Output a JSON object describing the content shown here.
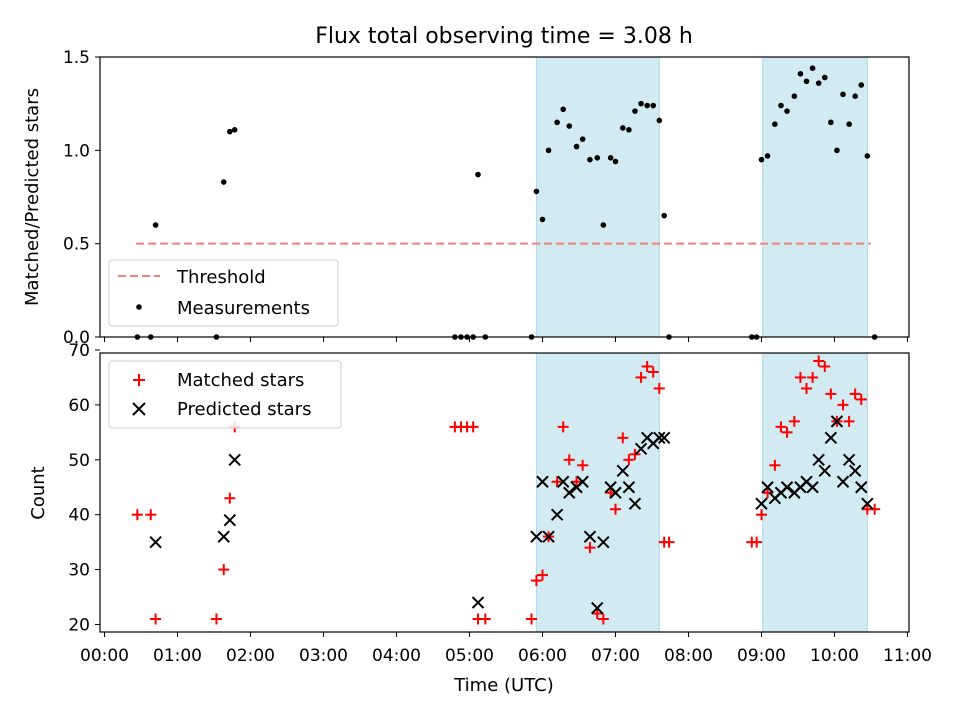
{
  "title": "Flux total observing time = 3.08 h",
  "colors": {
    "band": "#add8e6",
    "threshold": "#f08080",
    "matched": "#ff0000",
    "predicted": "#000000",
    "measurement": "#000000"
  },
  "chart_data": [
    {
      "type": "scatter",
      "ylabel": "Matched/Predicted stars",
      "xlim": [
        "00:00",
        "11:00"
      ],
      "ylim": [
        0,
        1.5
      ],
      "yticks": [
        "0.0",
        "0.5",
        "1.0",
        "1.5"
      ],
      "bands": [
        [
          "05:55",
          "07:36"
        ],
        [
          "09:01",
          "10:27"
        ]
      ],
      "threshold": 0.5,
      "threshold_range": [
        "00:26",
        "10:30"
      ],
      "legend": {
        "position": "lower-left",
        "threshold_label": "Threshold",
        "measurements_label": "Measurements"
      },
      "series": [
        {
          "name": "Measurements",
          "points": [
            [
              "00:27",
              0.0
            ],
            [
              "00:38",
              0.0
            ],
            [
              "00:42",
              0.6
            ],
            [
              "01:32",
              0.0
            ],
            [
              "01:38",
              0.83
            ],
            [
              "01:43",
              1.1
            ],
            [
              "01:47",
              1.11
            ],
            [
              "04:48",
              0.0
            ],
            [
              "04:53",
              0.0
            ],
            [
              "04:58",
              0.0
            ],
            [
              "05:03",
              0.0
            ],
            [
              "05:07",
              0.87
            ],
            [
              "05:13",
              0.0
            ],
            [
              "05:51",
              0.0
            ],
            [
              "05:55",
              0.78
            ],
            [
              "06:00",
              0.63
            ],
            [
              "06:05",
              1.0
            ],
            [
              "06:12",
              1.15
            ],
            [
              "06:17",
              1.22
            ],
            [
              "06:22",
              1.13
            ],
            [
              "06:28",
              1.02
            ],
            [
              "06:33",
              1.06
            ],
            [
              "06:39",
              0.95
            ],
            [
              "06:45",
              0.96
            ],
            [
              "06:50",
              0.6
            ],
            [
              "06:56",
              0.96
            ],
            [
              "07:00",
              0.94
            ],
            [
              "07:06",
              1.12
            ],
            [
              "07:11",
              1.11
            ],
            [
              "07:16",
              1.21
            ],
            [
              "07:21",
              1.25
            ],
            [
              "07:26",
              1.24
            ],
            [
              "07:31",
              1.24
            ],
            [
              "07:36",
              1.16
            ],
            [
              "07:40",
              0.65
            ],
            [
              "07:44",
              0.0
            ],
            [
              "08:52",
              0.0
            ],
            [
              "08:56",
              0.0
            ],
            [
              "09:00",
              0.95
            ],
            [
              "09:05",
              0.97
            ],
            [
              "09:11",
              1.14
            ],
            [
              "09:16",
              1.24
            ],
            [
              "09:21",
              1.21
            ],
            [
              "09:27",
              1.29
            ],
            [
              "09:32",
              1.41
            ],
            [
              "09:37",
              1.37
            ],
            [
              "09:42",
              1.44
            ],
            [
              "09:47",
              1.36
            ],
            [
              "09:52",
              1.39
            ],
            [
              "09:57",
              1.15
            ],
            [
              "10:02",
              1.0
            ],
            [
              "10:07",
              1.3
            ],
            [
              "10:12",
              1.14
            ],
            [
              "10:17",
              1.29
            ],
            [
              "10:22",
              1.35
            ],
            [
              "10:27",
              0.97
            ],
            [
              "10:33",
              0.0
            ]
          ]
        }
      ]
    },
    {
      "type": "scatter",
      "xlabel": "Time (UTC)",
      "ylabel": "Count",
      "xlim": [
        "00:00",
        "11:00"
      ],
      "ylim": [
        19,
        70
      ],
      "yticks": [
        "20",
        "30",
        "40",
        "50",
        "60",
        "70"
      ],
      "xticks": [
        "00:00",
        "01:00",
        "02:00",
        "03:00",
        "04:00",
        "05:00",
        "06:00",
        "07:00",
        "08:00",
        "09:00",
        "10:00",
        "11:00"
      ],
      "bands": [
        [
          "05:55",
          "07:36"
        ],
        [
          "09:01",
          "10:27"
        ]
      ],
      "legend": {
        "position": "upper-left"
      },
      "series": [
        {
          "name": "Matched stars",
          "marker": "+",
          "points": [
            [
              "00:27",
              40
            ],
            [
              "00:38",
              40
            ],
            [
              "00:42",
              21
            ],
            [
              "01:32",
              21
            ],
            [
              "01:38",
              30
            ],
            [
              "01:43",
              43
            ],
            [
              "01:47",
              56
            ],
            [
              "04:48",
              56
            ],
            [
              "04:53",
              56
            ],
            [
              "04:58",
              56
            ],
            [
              "05:03",
              56
            ],
            [
              "05:07",
              21
            ],
            [
              "05:13",
              21
            ],
            [
              "05:51",
              21
            ],
            [
              "05:55",
              28
            ],
            [
              "06:00",
              29
            ],
            [
              "06:05",
              36
            ],
            [
              "06:12",
              46
            ],
            [
              "06:17",
              56
            ],
            [
              "06:22",
              50
            ],
            [
              "06:28",
              46
            ],
            [
              "06:33",
              49
            ],
            [
              "06:39",
              34
            ],
            [
              "06:45",
              22
            ],
            [
              "06:50",
              21
            ],
            [
              "06:56",
              44
            ],
            [
              "07:00",
              41
            ],
            [
              "07:06",
              54
            ],
            [
              "07:11",
              50
            ],
            [
              "07:16",
              51
            ],
            [
              "07:21",
              65
            ],
            [
              "07:26",
              67
            ],
            [
              "07:31",
              66
            ],
            [
              "07:36",
              63
            ],
            [
              "07:40",
              35
            ],
            [
              "07:44",
              35
            ],
            [
              "08:52",
              35
            ],
            [
              "08:56",
              35
            ],
            [
              "09:00",
              40
            ],
            [
              "09:05",
              44
            ],
            [
              "09:11",
              49
            ],
            [
              "09:16",
              56
            ],
            [
              "09:21",
              55
            ],
            [
              "09:27",
              57
            ],
            [
              "09:32",
              65
            ],
            [
              "09:37",
              63
            ],
            [
              "09:42",
              65
            ],
            [
              "09:47",
              68
            ],
            [
              "09:52",
              67
            ],
            [
              "09:57",
              62
            ],
            [
              "10:02",
              57
            ],
            [
              "10:07",
              60
            ],
            [
              "10:12",
              57
            ],
            [
              "10:17",
              62
            ],
            [
              "10:22",
              61
            ],
            [
              "10:27",
              41
            ],
            [
              "10:33",
              41
            ]
          ]
        },
        {
          "name": "Predicted stars",
          "marker": "x",
          "points": [
            [
              "00:42",
              35
            ],
            [
              "01:38",
              36
            ],
            [
              "01:43",
              39
            ],
            [
              "01:47",
              50
            ],
            [
              "05:07",
              24
            ],
            [
              "05:55",
              36
            ],
            [
              "06:00",
              46
            ],
            [
              "06:05",
              36
            ],
            [
              "06:12",
              40
            ],
            [
              "06:17",
              46
            ],
            [
              "06:22",
              44
            ],
            [
              "06:28",
              45
            ],
            [
              "06:33",
              46
            ],
            [
              "06:39",
              36
            ],
            [
              "06:45",
              23
            ],
            [
              "06:50",
              35
            ],
            [
              "06:56",
              45
            ],
            [
              "07:00",
              44
            ],
            [
              "07:06",
              48
            ],
            [
              "07:11",
              45
            ],
            [
              "07:16",
              42
            ],
            [
              "07:21",
              52
            ],
            [
              "07:26",
              54
            ],
            [
              "07:31",
              53
            ],
            [
              "07:36",
              54
            ],
            [
              "07:40",
              54
            ],
            [
              "09:00",
              42
            ],
            [
              "09:05",
              45
            ],
            [
              "09:11",
              43
            ],
            [
              "09:16",
              44
            ],
            [
              "09:21",
              45
            ],
            [
              "09:27",
              44
            ],
            [
              "09:32",
              45
            ],
            [
              "09:37",
              46
            ],
            [
              "09:42",
              45
            ],
            [
              "09:47",
              50
            ],
            [
              "09:52",
              48
            ],
            [
              "09:57",
              54
            ],
            [
              "10:02",
              57
            ],
            [
              "10:07",
              46
            ],
            [
              "10:12",
              50
            ],
            [
              "10:17",
              48
            ],
            [
              "10:22",
              45
            ],
            [
              "10:27",
              42
            ]
          ]
        }
      ]
    }
  ]
}
